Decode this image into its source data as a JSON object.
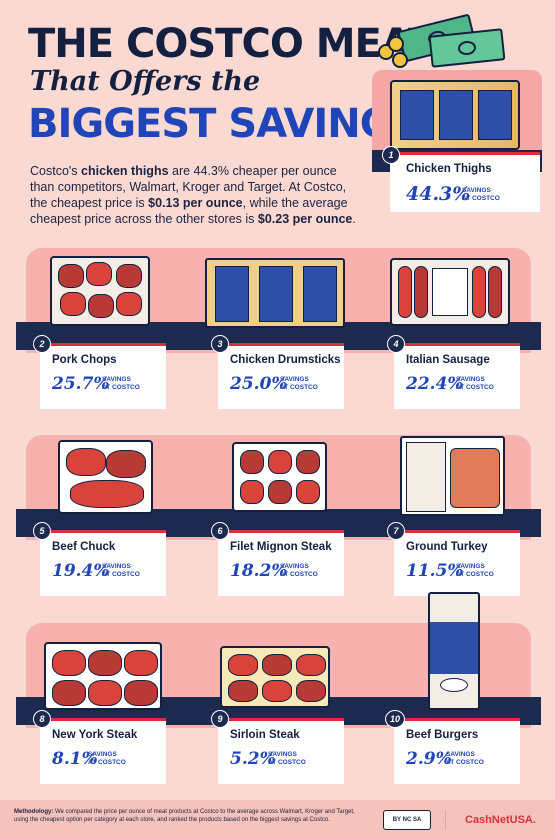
{
  "header": {
    "line1": "THE COSTCO MEAT",
    "line2": "That Offers the",
    "line3": "BIGGEST SAVINGS"
  },
  "intro": {
    "p1": "Costco's ",
    "p1b": "chicken thighs",
    "p2": " are 44.3% cheaper per ounce than competitors, Walmart, Kroger and Target. At Costco, the cheapest price is ",
    "p2b": "$0.13 per ounce",
    "p3": ", while the average cheapest price across the other stores is ",
    "p3b": "$0.23 per ounce",
    "p4": "."
  },
  "savings_label_line1": "SAVINGS",
  "savings_label_line2": "AT COSTCO",
  "products": [
    {
      "rank": "1",
      "name": "Chicken Thighs",
      "pct": "44.3%"
    },
    {
      "rank": "2",
      "name": "Pork Chops",
      "pct": "25.7%"
    },
    {
      "rank": "3",
      "name": "Chicken Drumsticks",
      "pct": "25.0%"
    },
    {
      "rank": "4",
      "name": "Italian Sausage",
      "pct": "22.4%"
    },
    {
      "rank": "5",
      "name": "Beef Chuck",
      "pct": "19.4%"
    },
    {
      "rank": "6",
      "name": "Filet Mignon Steak",
      "pct": "18.2%"
    },
    {
      "rank": "7",
      "name": "Ground Turkey",
      "pct": "11.5%"
    },
    {
      "rank": "8",
      "name": "New York Steak",
      "pct": "8.1%"
    },
    {
      "rank": "9",
      "name": "Sirloin Steak",
      "pct": "5.2%"
    },
    {
      "rank": "10",
      "name": "Beef Burgers",
      "pct": "2.9%"
    }
  ],
  "footer": {
    "method_label": "Methodology:",
    "method_text": " We compared the price per ounce of meat products at Costco to the average across Walmart, Kroger and Target, using the cheapest option per category at each store, and ranked the products based on the biggest savings at Costco.",
    "license": "BY NC SA",
    "brand": "CashNetUSA."
  },
  "colors": {
    "background": "#fbd9d3",
    "navy": "#1c2a4f",
    "blue": "#2045b8",
    "red": "#d9303a"
  }
}
